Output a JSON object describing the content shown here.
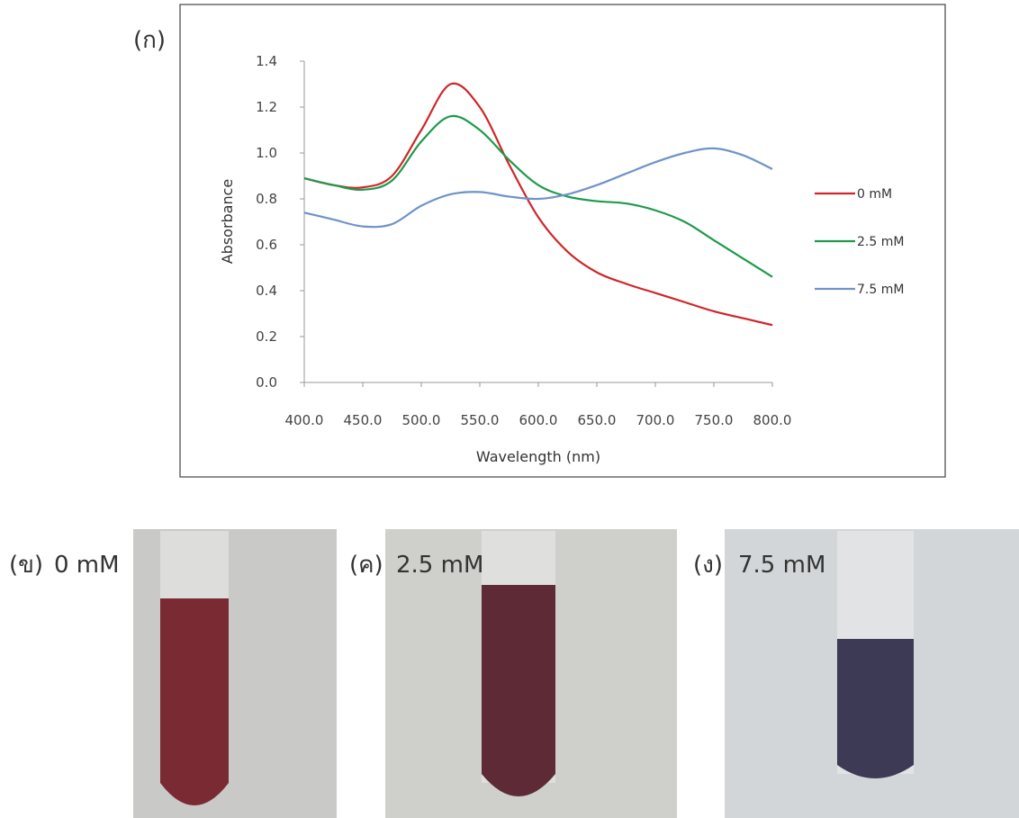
{
  "chart_data": {
    "type": "line",
    "annotation": "(ก)",
    "x_label": "Wavelength (nm)",
    "y_label": "Absorbance",
    "x": [
      400,
      425,
      450,
      475,
      500,
      525,
      550,
      575,
      600,
      625,
      650,
      675,
      700,
      725,
      750,
      775,
      800
    ],
    "series": [
      {
        "name": "0 mM",
        "color": "#d0252a",
        "values": [
          0.89,
          0.86,
          0.85,
          0.9,
          1.1,
          1.3,
          1.2,
          0.95,
          0.72,
          0.57,
          0.48,
          0.43,
          0.39,
          0.35,
          0.31,
          0.28,
          0.25
        ]
      },
      {
        "name": "2.5 mM",
        "color": "#1e9a4a",
        "values": [
          0.89,
          0.86,
          0.84,
          0.88,
          1.05,
          1.16,
          1.1,
          0.97,
          0.86,
          0.81,
          0.79,
          0.78,
          0.75,
          0.7,
          0.62,
          0.54,
          0.46
        ]
      },
      {
        "name": "7.5 mM",
        "color": "#6f93c8",
        "values": [
          0.74,
          0.71,
          0.68,
          0.69,
          0.77,
          0.82,
          0.83,
          0.81,
          0.8,
          0.82,
          0.86,
          0.91,
          0.96,
          1.0,
          1.02,
          0.99,
          0.93
        ]
      }
    ],
    "xlim": [
      400,
      800
    ],
    "ylim": [
      0,
      1.4
    ],
    "xticks": [
      {
        "value": 400,
        "label": "400.0"
      },
      {
        "value": 450,
        "label": "450.0"
      },
      {
        "value": 500,
        "label": "500.0"
      },
      {
        "value": 550,
        "label": "550.0"
      },
      {
        "value": 600,
        "label": "600.0"
      },
      {
        "value": 650,
        "label": "650.0"
      },
      {
        "value": 700,
        "label": "700.0"
      },
      {
        "value": 750,
        "label": "750.0"
      },
      {
        "value": 800,
        "label": "800.0"
      }
    ],
    "yticks": [
      {
        "value": 0,
        "label": "0.0"
      },
      {
        "value": 0.2,
        "label": "0.2"
      },
      {
        "value": 0.4,
        "label": "0.4"
      },
      {
        "value": 0.6,
        "label": "0.6"
      },
      {
        "value": 0.8,
        "label": "0.8"
      },
      {
        "value": 1,
        "label": "1.0"
      },
      {
        "value": 1.2,
        "label": "1.2"
      },
      {
        "value": 1.4,
        "label": "1.4"
      }
    ],
    "grid": false,
    "legend": "right"
  },
  "photos": [
    {
      "label": "(ข)",
      "caption": "0 mM"
    },
    {
      "label": "(ค)",
      "caption": "2.5 mM"
    },
    {
      "label": "(ง)",
      "caption": "7.5 mM"
    }
  ]
}
